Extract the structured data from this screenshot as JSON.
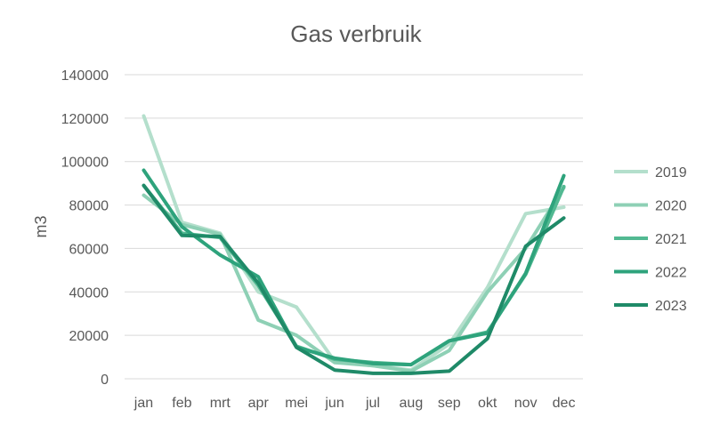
{
  "chart_data": {
    "type": "line",
    "title": "Gas verbruik",
    "ylabel": "m3",
    "xlabel": "",
    "ylim": [
      0,
      140000
    ],
    "yticks": [
      0,
      20000,
      40000,
      60000,
      80000,
      100000,
      120000,
      140000
    ],
    "grid": true,
    "legend_position": "right",
    "categories": [
      "jan",
      "feb",
      "mrt",
      "apr",
      "mei",
      "jun",
      "jul",
      "aug",
      "sep",
      "okt",
      "nov",
      "dec"
    ],
    "series": [
      {
        "name": "2019",
        "color": "#b4dfcc",
        "values": [
          121000,
          72000,
          67000,
          40000,
          33000,
          8000,
          6000,
          4000,
          16000,
          42000,
          76000,
          79000
        ]
      },
      {
        "name": "2020",
        "color": "#8ed0b5",
        "values": [
          84500,
          71000,
          66500,
          27000,
          20000,
          7500,
          6000,
          3500,
          13000,
          40000,
          60000,
          88000
        ]
      },
      {
        "name": "2021",
        "color": "#52b992",
        "values": [
          89000,
          67000,
          65000,
          43000,
          15000,
          9000,
          7500,
          6500,
          17500,
          21500,
          48000,
          88500
        ]
      },
      {
        "name": "2022",
        "color": "#2ea37c",
        "values": [
          96000,
          70000,
          57000,
          47000,
          14500,
          9500,
          7000,
          6500,
          17500,
          21000,
          48500,
          93500
        ]
      },
      {
        "name": "2023",
        "color": "#1f8a68",
        "values": [
          89000,
          66000,
          65500,
          44000,
          14500,
          4000,
          2500,
          2500,
          3500,
          18500,
          61000,
          74000
        ]
      }
    ]
  }
}
